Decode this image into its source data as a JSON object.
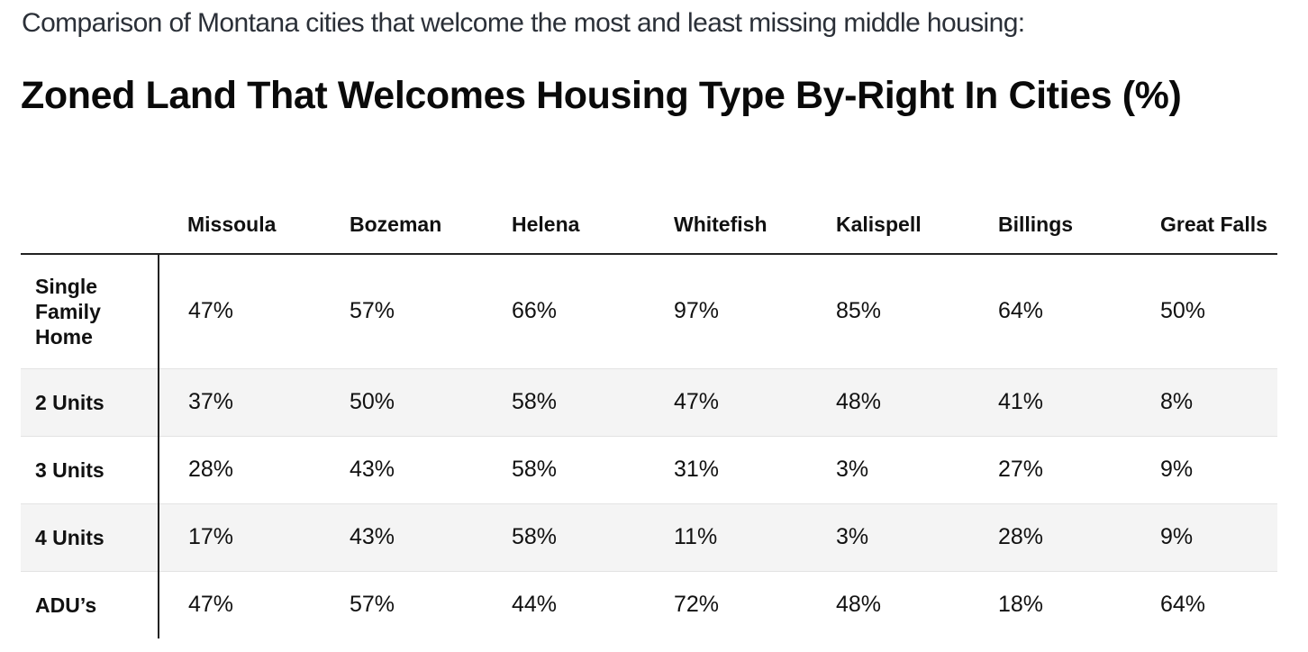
{
  "intro_text": "Comparison of Montana cities that welcome the most and least missing middle housing:",
  "chart_data": {
    "type": "table",
    "title": "Zoned Land That Welcomes Housing Type By-Right In Cities (%)",
    "columns": [
      "Missoula",
      "Bozeman",
      "Helena",
      "Whitefish",
      "Kalispell",
      "Billings",
      "Great Falls"
    ],
    "rows": [
      {
        "label": "Single Family Home",
        "values": [
          47,
          57,
          66,
          97,
          85,
          64,
          50
        ],
        "display": [
          "47%",
          "57%",
          "66%",
          "97%",
          "85%",
          "64%",
          "50%"
        ]
      },
      {
        "label": "2 Units",
        "values": [
          37,
          50,
          58,
          47,
          48,
          41,
          8
        ],
        "display": [
          "37%",
          "50%",
          "58%",
          "47%",
          "48%",
          "41%",
          "8%"
        ]
      },
      {
        "label": "3 Units",
        "values": [
          28,
          43,
          58,
          31,
          3,
          27,
          9
        ],
        "display": [
          "28%",
          "43%",
          "58%",
          "31%",
          "3%",
          "27%",
          "9%"
        ]
      },
      {
        "label": "4 Units",
        "values": [
          17,
          43,
          58,
          11,
          3,
          28,
          9
        ],
        "display": [
          "17%",
          "43%",
          "58%",
          "11%",
          "3%",
          "28%",
          "9%"
        ]
      },
      {
        "label": "ADU’s",
        "values": [
          47,
          57,
          44,
          72,
          48,
          18,
          64
        ],
        "display": [
          "47%",
          "57%",
          "44%",
          "72%",
          "48%",
          "18%",
          "64%"
        ]
      }
    ]
  }
}
